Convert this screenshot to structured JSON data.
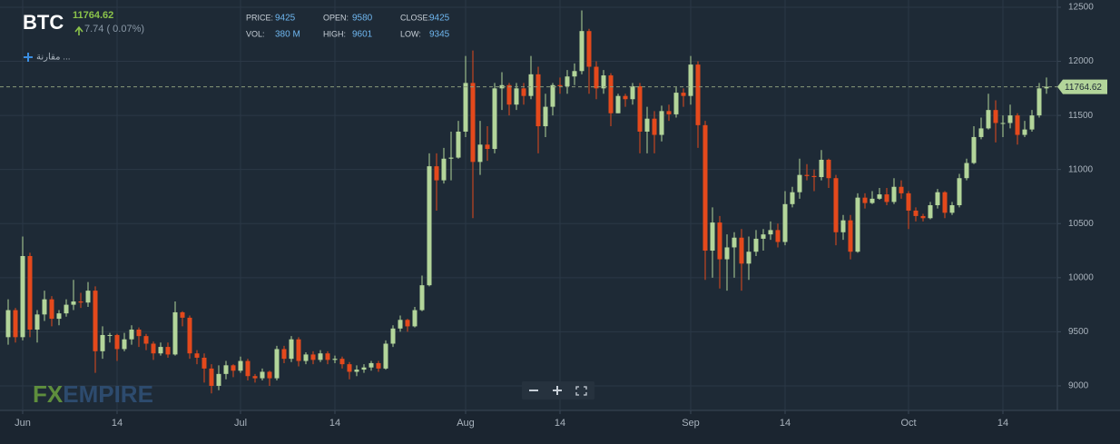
{
  "chart_data": {
    "type": "candlestick",
    "open": [
      9450,
      9700,
      9450,
      10200,
      9520,
      9660,
      9800,
      9620,
      9670,
      9750,
      9780,
      9770,
      9880,
      9320,
      9470,
      9470,
      9340,
      9430,
      9520,
      9460,
      9390,
      9300,
      9360,
      9290,
      9680,
      9630,
      9300,
      9260,
      9160,
      9000,
      9110,
      9190,
      9140,
      9230,
      9090,
      9070,
      9130,
      9070,
      9340,
      9250,
      9430,
      9230,
      9290,
      9240,
      9300,
      9240,
      9250,
      9200,
      9130,
      9150,
      9170,
      9210,
      9160,
      9390,
      9530,
      9610,
      9550,
      9700,
      9930,
      11030,
      10900,
      11100,
      11110,
      11350,
      11800,
      11070,
      11230,
      11190,
      11750,
      11780,
      11600,
      11750,
      11680,
      11880,
      11400,
      11580,
      11780,
      11770,
      11860,
      11910,
      12280,
      11950,
      11750,
      11870,
      11520,
      11680,
      11650,
      11770,
      11350,
      11470,
      11320,
      11540,
      11510,
      11710,
      11680,
      11970,
      11410,
      10250,
      10510,
      10170,
      10280,
      10370,
      10130,
      10240,
      10360,
      10400,
      10440,
      10330,
      10680,
      10790,
      10950,
      10940,
      10930,
      11090,
      10920,
      10420,
      10530,
      10240,
      10740,
      10690,
      10730,
      10770,
      10700,
      10840,
      10780,
      10620,
      10570,
      10550,
      10670,
      10790,
      10600,
      10670,
      10920,
      11060,
      11300,
      11380,
      11550,
      11430,
      11430,
      11500,
      11320,
      11370,
      11500,
      11750
    ],
    "high": [
      9800,
      9720,
      10380,
      10230,
      9700,
      9880,
      9830,
      9700,
      9800,
      9980,
      9860,
      9960,
      9920,
      9550,
      9490,
      9480,
      9490,
      9560,
      9540,
      9480,
      9410,
      9400,
      9400,
      9780,
      9690,
      9650,
      9330,
      9300,
      9200,
      9190,
      9230,
      9200,
      9270,
      9250,
      9110,
      9160,
      9140,
      9370,
      9370,
      9460,
      9450,
      9310,
      9320,
      9330,
      9320,
      9280,
      9270,
      9220,
      9190,
      9200,
      9230,
      9230,
      9420,
      9560,
      9650,
      9620,
      9730,
      10020,
      11150,
      11150,
      11200,
      11350,
      11450,
      12050,
      12100,
      11450,
      11400,
      11800,
      11900,
      11800,
      11800,
      11800,
      12050,
      11950,
      11700,
      11800,
      11850,
      11920,
      11980,
      12470,
      12300,
      12000,
      11920,
      11890,
      11700,
      11700,
      11800,
      11800,
      11580,
      11540,
      11590,
      11600,
      11760,
      11750,
      12050,
      12000,
      11450,
      10650,
      10570,
      10400,
      10420,
      10450,
      10380,
      10440,
      10450,
      10520,
      10500,
      10800,
      10840,
      11100,
      11050,
      11000,
      11180,
      11100,
      10950,
      10580,
      10580,
      10780,
      10780,
      10800,
      10830,
      10830,
      10920,
      10900,
      10800,
      10650,
      10590,
      10700,
      10820,
      10800,
      10700,
      10960,
      11100,
      11400,
      11480,
      11700,
      11640,
      11500,
      11600,
      11520,
      11450,
      11550,
      11800,
      11850
    ],
    "low": [
      9380,
      9400,
      9420,
      9450,
      9400,
      9600,
      9550,
      9560,
      9640,
      9700,
      9720,
      9730,
      9120,
      9250,
      9400,
      9230,
      9320,
      9380,
      9360,
      9330,
      9240,
      9280,
      9260,
      9280,
      9550,
      9250,
      9200,
      9030,
      8930,
      8960,
      9060,
      9080,
      9120,
      9050,
      9030,
      9050,
      9000,
      9050,
      9210,
      9220,
      9180,
      9200,
      9200,
      9220,
      9200,
      9210,
      9160,
      9060,
      9090,
      9120,
      9140,
      9130,
      9150,
      9360,
      9500,
      9500,
      9540,
      9690,
      9920,
      10620,
      10870,
      10900,
      11100,
      11300,
      10550,
      10950,
      11080,
      11150,
      11550,
      11500,
      11550,
      11600,
      11650,
      11150,
      11300,
      11500,
      11700,
      11700,
      11780,
      11880,
      11700,
      11650,
      11700,
      11400,
      11520,
      11580,
      11600,
      11150,
      11150,
      11150,
      11260,
      11450,
      11480,
      11580,
      11600,
      11200,
      9980,
      10000,
      9900,
      9880,
      10000,
      9880,
      9980,
      10200,
      10250,
      10350,
      10280,
      10300,
      10650,
      10730,
      10900,
      10800,
      10900,
      10830,
      10300,
      10350,
      10170,
      10230,
      10640,
      10680,
      10720,
      10670,
      10680,
      10730,
      10450,
      10520,
      10520,
      10540,
      10640,
      10550,
      10580,
      10650,
      10900,
      11050,
      11280,
      11370,
      11250,
      11300,
      11380,
      11230,
      11300,
      11350,
      11480,
      11700
    ],
    "close": [
      9700,
      9450,
      10200,
      9520,
      9660,
      9800,
      9620,
      9670,
      9750,
      9780,
      9770,
      9880,
      9320,
      9470,
      9470,
      9340,
      9430,
      9520,
      9460,
      9390,
      9300,
      9360,
      9290,
      9680,
      9630,
      9300,
      9260,
      9160,
      9000,
      9110,
      9190,
      9140,
      9230,
      9090,
      9070,
      9130,
      9070,
      9340,
      9250,
      9430,
      9230,
      9290,
      9240,
      9300,
      9240,
      9250,
      9200,
      9130,
      9150,
      9170,
      9210,
      9160,
      9390,
      9530,
      9610,
      9550,
      9700,
      9930,
      11030,
      10900,
      11100,
      11110,
      11350,
      11800,
      11070,
      11230,
      11190,
      11750,
      11780,
      11600,
      11750,
      11680,
      11880,
      11400,
      11580,
      11780,
      11770,
      11860,
      11910,
      12280,
      11950,
      11750,
      11870,
      11520,
      11680,
      11650,
      11770,
      11350,
      11470,
      11320,
      11540,
      11510,
      11710,
      11680,
      11970,
      11410,
      10250,
      10510,
      10170,
      10280,
      10370,
      10130,
      10240,
      10360,
      10400,
      10440,
      10330,
      10680,
      10790,
      10950,
      10940,
      10930,
      11090,
      10920,
      10420,
      10530,
      10240,
      10740,
      10690,
      10730,
      10770,
      10700,
      10840,
      10780,
      10620,
      10570,
      10550,
      10670,
      10790,
      10600,
      10670,
      10920,
      11060,
      11300,
      11380,
      11550,
      11430,
      11430,
      11500,
      11320,
      11370,
      11500,
      11750,
      11764.62
    ],
    "up_color": "#b3d59a",
    "down_color": "#e4491c",
    "xlim": [
      -1.125,
      144.5
    ],
    "xticks": [
      {
        "value": 2,
        "label": "Jun"
      },
      {
        "value": 15,
        "label": "14"
      },
      {
        "value": 32,
        "label": "Jul"
      },
      {
        "value": 45,
        "label": "14"
      },
      {
        "value": 63,
        "label": "Aug"
      },
      {
        "value": 76,
        "label": "14"
      },
      {
        "value": 94,
        "label": "Sep"
      },
      {
        "value": 107,
        "label": "14"
      },
      {
        "value": 124,
        "label": "Oct"
      },
      {
        "value": 137,
        "label": "14"
      }
    ],
    "ylim": [
      8773,
      12567
    ],
    "yticks": [
      9000,
      9500,
      10000,
      10500,
      11000,
      11500,
      12000,
      12500
    ],
    "grid": true,
    "last_price": 11764.62
  },
  "header": {
    "symbol": "BTC",
    "change": "7.74 ( 0.07%)",
    "stats": [
      [
        "PRICE:",
        "9425"
      ],
      [
        "OPEN:",
        "9580"
      ],
      [
        "CLOSE:",
        "9425"
      ],
      [
        "VOL:",
        "380 M"
      ],
      [
        "HIGH:",
        "9601"
      ],
      [
        "LOW:",
        "9345"
      ]
    ]
  },
  "compare": "مقارنة ...",
  "watermark": [
    "FX",
    "EMPIRE"
  ]
}
